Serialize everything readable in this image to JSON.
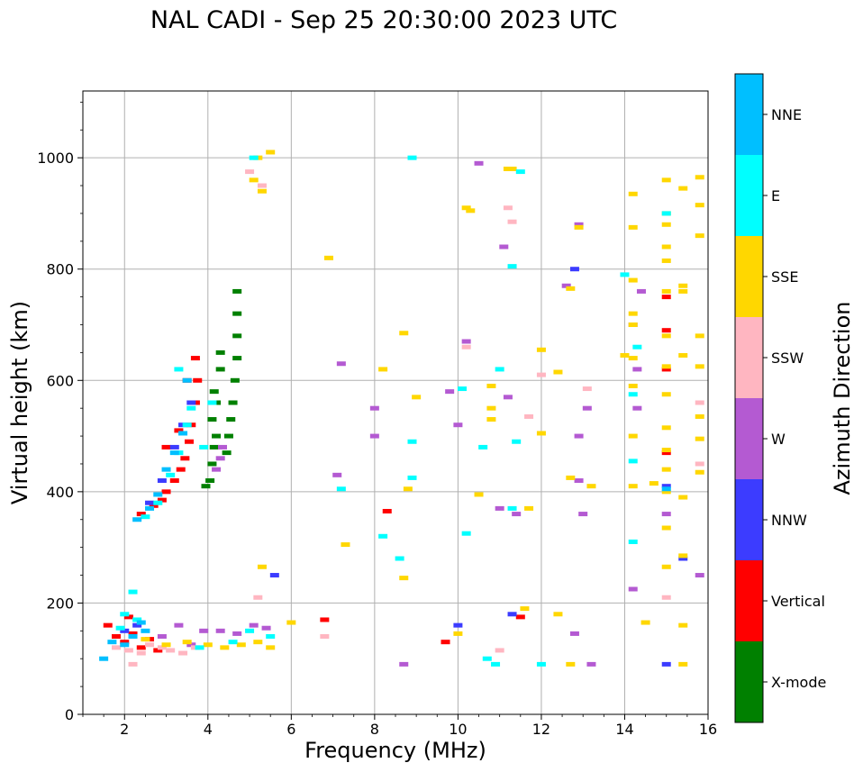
{
  "chart_data": {
    "type": "scatter",
    "title": "NAL CADI - Sep 25 20:30:00 2023 UTC",
    "xlabel": "Frequency (MHz)",
    "ylabel": "Virtual height (km)",
    "xlim": [
      1,
      16
    ],
    "ylim": [
      0,
      1120
    ],
    "xticks": [
      2,
      4,
      6,
      8,
      10,
      12,
      14,
      16
    ],
    "yticks": [
      0,
      200,
      400,
      600,
      800,
      1000
    ],
    "grid": true,
    "colorbar": {
      "label": "Azimuth Direction",
      "categories": [
        {
          "name": "X-mode",
          "color": "#008000"
        },
        {
          "name": "Vertical",
          "color": "#ff0000"
        },
        {
          "name": "NNW",
          "color": "#3c3cff"
        },
        {
          "name": "W",
          "color": "#b45ad2"
        },
        {
          "name": "SSW",
          "color": "#ffb6c1"
        },
        {
          "name": "SSE",
          "color": "#ffd700"
        },
        {
          "name": "E",
          "color": "#00ffff"
        },
        {
          "name": "NNE",
          "color": "#00bfff"
        }
      ]
    },
    "series": [
      {
        "name": "X-mode",
        "points": [
          [
            3.95,
            410
          ],
          [
            4.05,
            420
          ],
          [
            4.1,
            450
          ],
          [
            4.15,
            480
          ],
          [
            4.2,
            500
          ],
          [
            4.1,
            530
          ],
          [
            4.2,
            560
          ],
          [
            4.15,
            580
          ],
          [
            4.3,
            620
          ],
          [
            4.45,
            470
          ],
          [
            4.5,
            500
          ],
          [
            4.55,
            530
          ],
          [
            4.6,
            560
          ],
          [
            4.65,
            600
          ],
          [
            4.7,
            640
          ],
          [
            4.7,
            680
          ],
          [
            4.7,
            720
          ],
          [
            4.7,
            760
          ],
          [
            4.3,
            650
          ]
        ]
      },
      {
        "name": "Vertical",
        "points": [
          [
            2.4,
            360
          ],
          [
            2.7,
            375
          ],
          [
            2.9,
            385
          ],
          [
            3.0,
            400
          ],
          [
            3.2,
            420
          ],
          [
            3.35,
            440
          ],
          [
            3.45,
            460
          ],
          [
            3.55,
            490
          ],
          [
            3.6,
            520
          ],
          [
            3.7,
            560
          ],
          [
            3.75,
            600
          ],
          [
            3.7,
            640
          ],
          [
            3.5,
            600
          ],
          [
            3.3,
            510
          ],
          [
            3.0,
            480
          ],
          [
            1.8,
            140
          ],
          [
            2.0,
            130
          ],
          [
            2.2,
            145
          ],
          [
            2.4,
            120
          ],
          [
            2.6,
            135
          ],
          [
            2.8,
            115
          ],
          [
            1.6,
            160
          ],
          [
            2.1,
            175
          ],
          [
            8.3,
            365
          ],
          [
            15.0,
            750
          ],
          [
            15.0,
            470
          ],
          [
            11.5,
            175
          ],
          [
            9.7,
            130
          ],
          [
            6.8,
            170
          ],
          [
            15.0,
            690
          ],
          [
            15.0,
            620
          ]
        ]
      },
      {
        "name": "NNW",
        "points": [
          [
            2.6,
            380
          ],
          [
            2.9,
            420
          ],
          [
            3.2,
            480
          ],
          [
            3.4,
            520
          ],
          [
            2.0,
            150
          ],
          [
            2.3,
            160
          ],
          [
            5.6,
            250
          ],
          [
            10.0,
            160
          ],
          [
            12.8,
            800
          ],
          [
            15.0,
            90
          ],
          [
            15.0,
            410
          ],
          [
            15.4,
            280
          ],
          [
            11.3,
            180
          ],
          [
            3.6,
            560
          ]
        ]
      },
      {
        "name": "W",
        "points": [
          [
            4.2,
            440
          ],
          [
            4.3,
            460
          ],
          [
            4.35,
            480
          ],
          [
            3.9,
            150
          ],
          [
            4.3,
            150
          ],
          [
            4.7,
            145
          ],
          [
            5.1,
            160
          ],
          [
            5.4,
            155
          ],
          [
            3.3,
            160
          ],
          [
            2.9,
            140
          ],
          [
            3.6,
            125
          ],
          [
            10.2,
            670
          ],
          [
            11.1,
            840
          ],
          [
            12.6,
            770
          ],
          [
            12.9,
            420
          ],
          [
            13.1,
            550
          ],
          [
            12.9,
            500
          ],
          [
            13.0,
            360
          ],
          [
            14.2,
            700
          ],
          [
            14.3,
            620
          ],
          [
            14.3,
            550
          ],
          [
            14.2,
            225
          ],
          [
            14.4,
            760
          ],
          [
            15.0,
            360
          ],
          [
            15.8,
            250
          ],
          [
            10.5,
            990
          ],
          [
            11.0,
            370
          ],
          [
            8.7,
            90
          ],
          [
            13.2,
            90
          ],
          [
            12.9,
            880
          ],
          [
            11.2,
            570
          ],
          [
            10.0,
            520
          ],
          [
            9.8,
            580
          ],
          [
            11.4,
            360
          ],
          [
            12.8,
            145
          ],
          [
            8.0,
            500
          ],
          [
            8.0,
            550
          ],
          [
            7.1,
            430
          ],
          [
            7.2,
            630
          ]
        ]
      },
      {
        "name": "SSW",
        "points": [
          [
            1.8,
            120
          ],
          [
            2.1,
            115
          ],
          [
            2.4,
            110
          ],
          [
            2.6,
            125
          ],
          [
            2.9,
            120
          ],
          [
            3.1,
            115
          ],
          [
            3.4,
            110
          ],
          [
            3.7,
            120
          ],
          [
            2.2,
            90
          ],
          [
            5.2,
            210
          ],
          [
            11.2,
            910
          ],
          [
            11.3,
            885
          ],
          [
            10.2,
            660
          ],
          [
            13.1,
            585
          ],
          [
            12.0,
            610
          ],
          [
            15.0,
            210
          ],
          [
            15.8,
            560
          ],
          [
            15.8,
            450
          ],
          [
            6.8,
            140
          ],
          [
            11.0,
            115
          ],
          [
            11.7,
            535
          ],
          [
            5.3,
            950
          ],
          [
            5.0,
            975
          ]
        ]
      },
      {
        "name": "SSE",
        "points": [
          [
            2.5,
            135
          ],
          [
            3.0,
            125
          ],
          [
            3.5,
            130
          ],
          [
            4.0,
            125
          ],
          [
            4.4,
            120
          ],
          [
            4.8,
            125
          ],
          [
            5.2,
            130
          ],
          [
            5.5,
            120
          ],
          [
            5.5,
            1010
          ],
          [
            5.2,
            1000
          ],
          [
            5.3,
            940
          ],
          [
            5.1,
            960
          ],
          [
            5.3,
            265
          ],
          [
            6.0,
            165
          ],
          [
            6.9,
            820
          ],
          [
            7.3,
            305
          ],
          [
            8.2,
            620
          ],
          [
            8.7,
            685
          ],
          [
            8.8,
            405
          ],
          [
            8.7,
            245
          ],
          [
            9.0,
            570
          ],
          [
            10.0,
            145
          ],
          [
            10.2,
            910
          ],
          [
            10.3,
            905
          ],
          [
            10.5,
            395
          ],
          [
            10.8,
            590
          ],
          [
            10.8,
            550
          ],
          [
            10.8,
            530
          ],
          [
            11.2,
            980
          ],
          [
            11.3,
            980
          ],
          [
            11.6,
            190
          ],
          [
            11.7,
            370
          ],
          [
            12.0,
            655
          ],
          [
            12.0,
            505
          ],
          [
            12.4,
            180
          ],
          [
            12.4,
            615
          ],
          [
            12.7,
            425
          ],
          [
            12.7,
            765
          ],
          [
            12.7,
            90
          ],
          [
            12.9,
            875
          ],
          [
            13.2,
            410
          ],
          [
            14.0,
            645
          ],
          [
            14.2,
            935
          ],
          [
            14.2,
            875
          ],
          [
            14.2,
            780
          ],
          [
            14.2,
            720
          ],
          [
            14.2,
            700
          ],
          [
            14.2,
            640
          ],
          [
            14.2,
            590
          ],
          [
            14.2,
            500
          ],
          [
            14.2,
            410
          ],
          [
            14.5,
            165
          ],
          [
            14.7,
            415
          ],
          [
            15.0,
            960
          ],
          [
            15.0,
            900
          ],
          [
            15.0,
            880
          ],
          [
            15.0,
            840
          ],
          [
            15.0,
            815
          ],
          [
            15.0,
            760
          ],
          [
            15.0,
            680
          ],
          [
            15.0,
            625
          ],
          [
            15.0,
            575
          ],
          [
            15.0,
            515
          ],
          [
            15.0,
            475
          ],
          [
            15.0,
            440
          ],
          [
            15.0,
            400
          ],
          [
            15.0,
            335
          ],
          [
            15.0,
            265
          ],
          [
            15.4,
            945
          ],
          [
            15.4,
            770
          ],
          [
            15.4,
            760
          ],
          [
            15.4,
            645
          ],
          [
            15.4,
            390
          ],
          [
            15.4,
            285
          ],
          [
            15.4,
            160
          ],
          [
            15.4,
            90
          ],
          [
            15.8,
            965
          ],
          [
            15.8,
            915
          ],
          [
            15.8,
            860
          ],
          [
            15.8,
            680
          ],
          [
            15.8,
            625
          ],
          [
            15.8,
            535
          ],
          [
            15.8,
            495
          ],
          [
            15.8,
            435
          ]
        ]
      },
      {
        "name": "E",
        "points": [
          [
            2.5,
            355
          ],
          [
            2.8,
            380
          ],
          [
            3.1,
            430
          ],
          [
            3.3,
            470
          ],
          [
            3.5,
            520
          ],
          [
            3.6,
            550
          ],
          [
            3.9,
            480
          ],
          [
            4.1,
            560
          ],
          [
            3.3,
            620
          ],
          [
            2.0,
            180
          ],
          [
            2.3,
            170
          ],
          [
            1.9,
            155
          ],
          [
            2.2,
            220
          ],
          [
            3.8,
            120
          ],
          [
            4.6,
            130
          ],
          [
            5.0,
            150
          ],
          [
            5.5,
            140
          ],
          [
            5.1,
            1000
          ],
          [
            7.2,
            405
          ],
          [
            8.2,
            320
          ],
          [
            8.6,
            280
          ],
          [
            8.9,
            1000
          ],
          [
            8.9,
            490
          ],
          [
            8.9,
            425
          ],
          [
            10.1,
            585
          ],
          [
            10.2,
            325
          ],
          [
            10.6,
            480
          ],
          [
            10.7,
            100
          ],
          [
            10.9,
            90
          ],
          [
            11.0,
            620
          ],
          [
            11.3,
            370
          ],
          [
            11.5,
            975
          ],
          [
            11.3,
            805
          ],
          [
            12.0,
            90
          ],
          [
            14.0,
            790
          ],
          [
            14.2,
            575
          ],
          [
            14.2,
            455
          ],
          [
            14.2,
            310
          ],
          [
            14.3,
            660
          ],
          [
            15.0,
            900
          ],
          [
            11.4,
            490
          ]
        ]
      },
      {
        "name": "NNE",
        "points": [
          [
            2.3,
            350
          ],
          [
            2.6,
            370
          ],
          [
            2.8,
            395
          ],
          [
            3.0,
            440
          ],
          [
            3.2,
            470
          ],
          [
            3.4,
            505
          ],
          [
            3.5,
            600
          ],
          [
            1.7,
            130
          ],
          [
            2.0,
            125
          ],
          [
            2.2,
            140
          ],
          [
            2.4,
            165
          ],
          [
            2.5,
            150
          ],
          [
            1.5,
            100
          ],
          [
            15.0,
            405
          ]
        ]
      }
    ]
  }
}
